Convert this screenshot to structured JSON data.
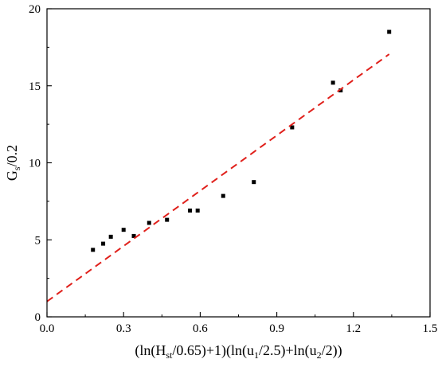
{
  "chart_data": {
    "type": "scatter",
    "title": "",
    "xlabel_parts": [
      {
        "t": "(ln(H"
      },
      {
        "t": "st",
        "sub": true
      },
      {
        "t": "/0.65)+1)(ln(u"
      },
      {
        "t": "1",
        "sub": true
      },
      {
        "t": "/2.5)+ln(u"
      },
      {
        "t": "2",
        "sub": true
      },
      {
        "t": "/2))"
      }
    ],
    "ylabel_parts": [
      {
        "t": "G"
      },
      {
        "t": "s",
        "sub": true
      },
      {
        "t": "/0.2"
      }
    ],
    "xlim": [
      0.0,
      1.5
    ],
    "ylim": [
      0,
      20
    ],
    "x_ticks": [
      "0.0",
      "0.3",
      "0.6",
      "0.9",
      "1.2",
      "1.5"
    ],
    "y_ticks": [
      "0",
      "5",
      "10",
      "15",
      "20"
    ],
    "grid": false,
    "legend": "none",
    "series": [
      {
        "kind": "points",
        "marker": "square",
        "color": "#000000",
        "points": [
          [
            0.18,
            4.35
          ],
          [
            0.22,
            4.75
          ],
          [
            0.25,
            5.2
          ],
          [
            0.3,
            5.65
          ],
          [
            0.34,
            5.25
          ],
          [
            0.4,
            6.1
          ],
          [
            0.47,
            6.3
          ],
          [
            0.56,
            6.9
          ],
          [
            0.59,
            6.9
          ],
          [
            0.69,
            7.85
          ],
          [
            0.81,
            8.75
          ],
          [
            0.96,
            12.3
          ],
          [
            1.12,
            15.2
          ],
          [
            1.15,
            14.7
          ],
          [
            1.34,
            18.5
          ]
        ]
      },
      {
        "kind": "fit-line",
        "style": "dashed",
        "color": "#e0201b",
        "points": [
          [
            0.0,
            1.0
          ],
          [
            1.34,
            17.05
          ]
        ]
      }
    ]
  }
}
